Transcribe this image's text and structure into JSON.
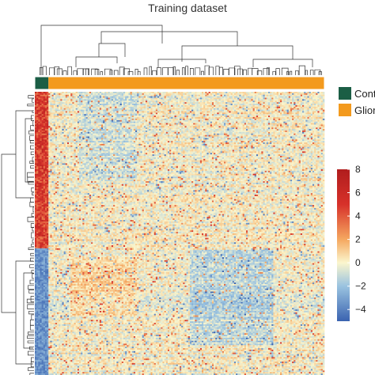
{
  "chart_data": {
    "type": "heatmap",
    "title": "Training dataset",
    "annotation_legend": [
      {
        "label": "Cont",
        "color": "#1b5e45"
      },
      {
        "label": "Gliom",
        "color": "#f39a1e"
      }
    ],
    "color_scale": {
      "min": -5,
      "max": 8,
      "ticks": [
        8,
        6,
        4,
        2,
        0,
        -2,
        -4
      ],
      "colors": [
        {
          "value": -5,
          "color": "#3a63b0"
        },
        {
          "value": -2,
          "color": "#9ac3e0"
        },
        {
          "value": 0,
          "color": "#fbf6cd"
        },
        {
          "value": 2,
          "color": "#f5a860"
        },
        {
          "value": 5,
          "color": "#d7312a"
        },
        {
          "value": 8,
          "color": "#b01d1d"
        }
      ]
    },
    "n_columns": 170,
    "n_rows": 190,
    "control_columns": 8,
    "grid": false,
    "legend_placement": "right"
  }
}
